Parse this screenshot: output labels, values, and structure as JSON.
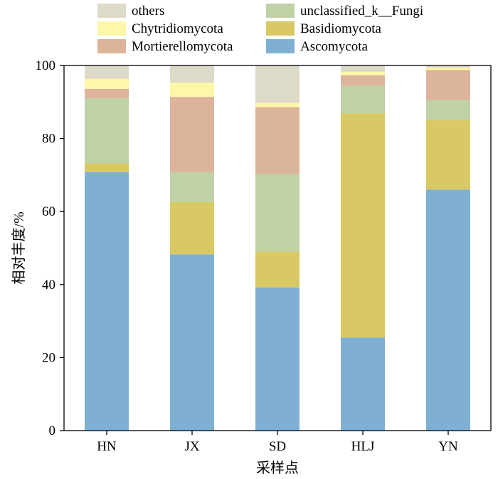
{
  "chart_data": {
    "type": "bar",
    "stacked": true,
    "xlabel": "采样点",
    "ylabel": "相对丰度/%",
    "ylim": [
      0,
      100
    ],
    "yticks": [
      0,
      20,
      40,
      60,
      80,
      100
    ],
    "categories": [
      "HN",
      "JX",
      "SD",
      "HLJ",
      "YN"
    ],
    "legend_position": "top",
    "series": [
      {
        "name": "Ascomycota",
        "color": "#7fb0d4",
        "values": [
          70.8,
          48.3,
          39.2,
          25.5,
          66.0
        ]
      },
      {
        "name": "Basidiomycota",
        "color": "#d9c964",
        "values": [
          2.4,
          14.3,
          9.8,
          61.4,
          19.0
        ]
      },
      {
        "name": "unclassified_k__Fungi",
        "color": "#bfd1a5",
        "values": [
          17.8,
          8.2,
          21.3,
          7.5,
          5.5
        ]
      },
      {
        "name": "Mortierellomycota",
        "color": "#dcb49a",
        "values": [
          2.6,
          20.6,
          18.3,
          2.9,
          8.3
        ]
      },
      {
        "name": "Chytridiomycota",
        "color": "#fdf7a8",
        "values": [
          2.8,
          3.9,
          1.2,
          1.0,
          0.6
        ]
      },
      {
        "name": "others",
        "color": "#dddac8",
        "values": [
          3.6,
          4.7,
          10.2,
          1.7,
          0.6
        ]
      }
    ],
    "legend": {
      "left_column": [
        "others",
        "Chytridiomycota",
        "Mortierellomycota"
      ],
      "right_column": [
        "unclassified_k__Fungi",
        "Basidiomycota",
        "Ascomycota"
      ]
    }
  }
}
